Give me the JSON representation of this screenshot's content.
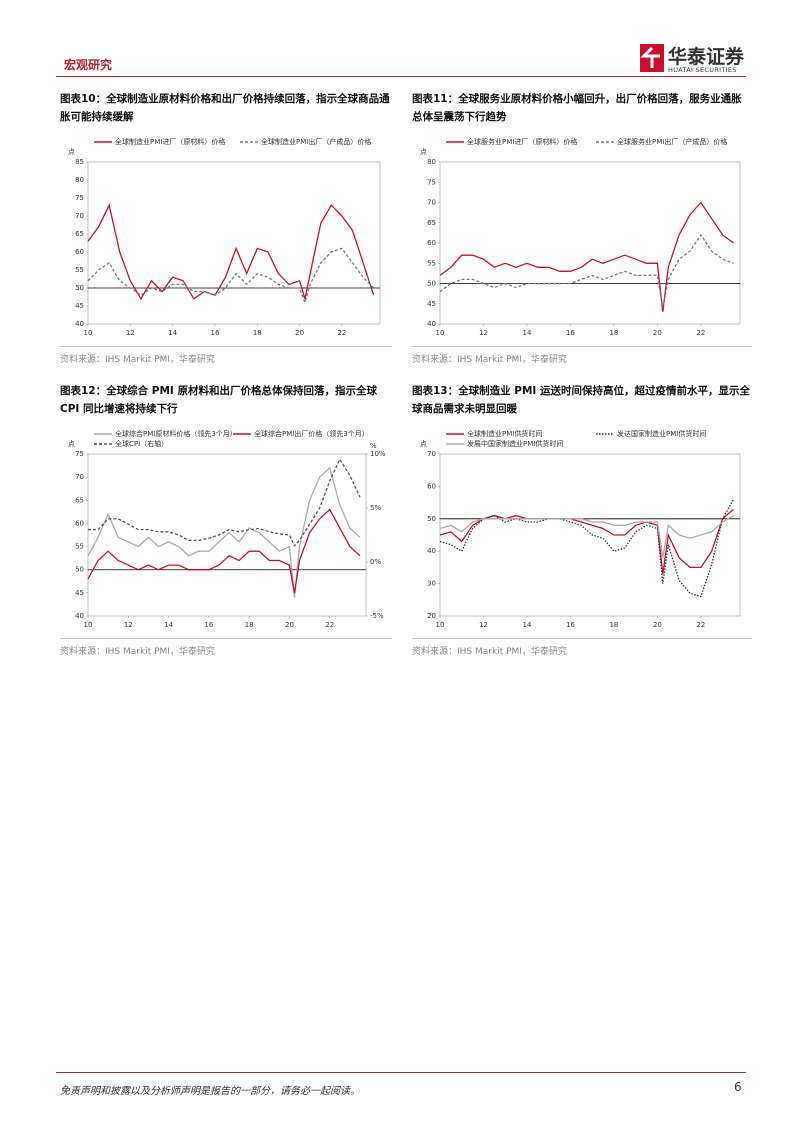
{
  "header": {
    "section": "宏观研究",
    "logo_cn": "华泰证券",
    "logo_en": "HUATAI SECURITIES"
  },
  "chart_data": [
    {
      "type": "line",
      "title": "图表10：全球制造业原材料价格和出厂价格持续回落，指示全球商品通胀可能持续缓解",
      "y_label": "点",
      "x": [
        10,
        10.5,
        11,
        11.5,
        12,
        12.5,
        13,
        13.5,
        14,
        14.5,
        15,
        15.5,
        16,
        16.5,
        17,
        17.5,
        18,
        18.5,
        19,
        19.5,
        20,
        20.25,
        20.5,
        21,
        21.5,
        22,
        22.5,
        23,
        23.5
      ],
      "xlim": [
        10,
        23.8
      ],
      "xticks": [
        10,
        12,
        14,
        16,
        18,
        20,
        22
      ],
      "ylim": [
        40,
        85
      ],
      "yticks": [
        40,
        45,
        50,
        55,
        60,
        65,
        70,
        75,
        80,
        85
      ],
      "hline": 50,
      "series": [
        {
          "name": "全球制造业PMI进厂（原材料）价格",
          "color": "#c8102e",
          "style": "solid",
          "values": [
            63,
            67,
            73,
            60,
            52,
            47,
            52,
            49,
            53,
            52,
            47,
            49,
            48,
            53,
            61,
            54,
            61,
            60,
            54,
            51,
            52,
            47,
            54,
            68,
            73,
            70,
            66,
            57,
            48
          ]
        },
        {
          "name": "全球制造业PMI出厂（产成品）价格",
          "color": "#777777",
          "style": "dashed",
          "values": [
            52,
            55,
            57,
            52,
            50,
            48,
            50,
            49,
            51,
            51,
            49,
            49,
            48,
            50,
            54,
            51,
            54,
            53,
            51,
            50,
            50,
            46,
            51,
            57,
            60,
            61,
            57,
            53,
            50
          ]
        }
      ],
      "source": "资料来源：IHS Markit PMI，华泰研究"
    },
    {
      "type": "line",
      "title": "图表11：全球服务业原材料价格小幅回升，出厂价格回落，服务业通胀总体呈震荡下行趋势",
      "y_label": "点",
      "x": [
        10,
        10.5,
        11,
        11.5,
        12,
        12.5,
        13,
        13.5,
        14,
        14.5,
        15,
        15.5,
        16,
        16.5,
        17,
        17.5,
        18,
        18.5,
        19,
        19.5,
        20,
        20.25,
        20.5,
        21,
        21.5,
        22,
        22.5,
        23,
        23.5
      ],
      "xlim": [
        10,
        23.8
      ],
      "xticks": [
        10,
        12,
        14,
        16,
        18,
        20,
        22
      ],
      "ylim": [
        40,
        80
      ],
      "yticks": [
        40,
        45,
        50,
        55,
        60,
        65,
        70,
        75,
        80
      ],
      "hline": 50,
      "series": [
        {
          "name": "全球服务业PMI进厂（原材料）价格",
          "color": "#c8102e",
          "style": "solid",
          "values": [
            52,
            54,
            57,
            57,
            56,
            54,
            55,
            54,
            55,
            54,
            54,
            53,
            53,
            54,
            56,
            55,
            56,
            57,
            56,
            55,
            55,
            43,
            54,
            62,
            67,
            70,
            66,
            62,
            60
          ]
        },
        {
          "name": "全球服务业PMI出厂（产成品）价格",
          "color": "#777777",
          "style": "dashed",
          "values": [
            48,
            50,
            51,
            51,
            50,
            49,
            50,
            49,
            50,
            50,
            50,
            50,
            50,
            51,
            52,
            51,
            52,
            53,
            52,
            52,
            52,
            44,
            51,
            56,
            58,
            62,
            58,
            56,
            55
          ]
        }
      ],
      "source": "资料来源：IHS Markit PMI，华泰研究"
    },
    {
      "type": "line",
      "title": "图表12：全球综合 PMI 原材料和出厂价格总体保持回落，指示全球 CPI 同比增速将持续下行",
      "y_label": "点",
      "y2_label": "%",
      "x": [
        10,
        10.5,
        11,
        11.5,
        12,
        12.5,
        13,
        13.5,
        14,
        14.5,
        15,
        15.5,
        16,
        16.5,
        17,
        17.5,
        18,
        18.5,
        19,
        19.5,
        20,
        20.25,
        20.5,
        21,
        21.5,
        22,
        22.5,
        23,
        23.5
      ],
      "xlim": [
        10,
        23.8
      ],
      "xticks": [
        10,
        12,
        14,
        16,
        18,
        20,
        22
      ],
      "ylim": [
        40,
        75
      ],
      "yticks": [
        40,
        45,
        50,
        55,
        60,
        65,
        70,
        75
      ],
      "y2lim": [
        -5,
        10
      ],
      "y2ticks": [
        {
          "value": -5,
          "label": "-5%"
        },
        {
          "value": 0,
          "label": "0%"
        },
        {
          "value": 5,
          "label": "5%"
        },
        {
          "value": 10,
          "label": "10%"
        }
      ],
      "hline": 50,
      "series": [
        {
          "name": "全球综合PMI原材料价格（领先3个月）",
          "color": "#aaaaaa",
          "style": "solid",
          "values": [
            53,
            57,
            62,
            57,
            56,
            55,
            57,
            55,
            56,
            55,
            53,
            54,
            54,
            56,
            58,
            56,
            59,
            58,
            56,
            54,
            55,
            44,
            55,
            65,
            70,
            72,
            64,
            59,
            57
          ]
        },
        {
          "name": "全球综合PMI出厂价格（领先3个月）",
          "color": "#c8102e",
          "style": "solid",
          "values": [
            48,
            52,
            54,
            52,
            51,
            50,
            51,
            50,
            51,
            51,
            50,
            50,
            50,
            51,
            53,
            52,
            54,
            54,
            52,
            52,
            51,
            45,
            52,
            58,
            61,
            63,
            59,
            55,
            53
          ]
        },
        {
          "name": "全球CPI（右轴）",
          "color": "#555555",
          "style": "dashed",
          "axis": "y2",
          "values": [
            3,
            3,
            4,
            4,
            3.5,
            3,
            3,
            2.8,
            2.8,
            2.5,
            2,
            2,
            2.2,
            2.5,
            3,
            2.8,
            3,
            3.1,
            2.8,
            2.6,
            2.5,
            1.5,
            2,
            3.5,
            5,
            7.5,
            9.5,
            8,
            6
          ]
        }
      ],
      "source": "资料来源：IHS Markit PMI，华泰研究"
    },
    {
      "type": "line",
      "title": "图表13：全球制造业 PMI 运送时间保持高位，超过疫情前水平，显示全球商品需求未明显回暖",
      "y_label": "点",
      "x": [
        10,
        10.5,
        11,
        11.5,
        12,
        12.5,
        13,
        13.5,
        14,
        14.5,
        15,
        15.5,
        16,
        16.5,
        17,
        17.5,
        18,
        18.5,
        19,
        19.5,
        20,
        20.25,
        20.5,
        21,
        21.5,
        22,
        22.5,
        23,
        23.5
      ],
      "xlim": [
        10,
        23.8
      ],
      "xticks": [
        10,
        12,
        14,
        16,
        18,
        20,
        22
      ],
      "ylim": [
        20,
        70
      ],
      "yticks": [
        20,
        30,
        40,
        50,
        60,
        70
      ],
      "hline": 50,
      "series": [
        {
          "name": "全球制造业PMI供货时间",
          "color": "#c8102e",
          "style": "solid",
          "values": [
            45,
            46,
            43,
            48,
            50,
            51,
            50,
            51,
            50,
            50,
            50,
            50,
            50,
            49,
            48,
            47,
            45,
            45,
            48,
            49,
            48,
            33,
            45,
            38,
            35,
            35,
            40,
            50,
            53
          ]
        },
        {
          "name": "发达国家制造业PMI供货时间",
          "color": "#333333",
          "style": "dotted",
          "values": [
            43,
            42,
            40,
            47,
            50,
            51,
            49,
            50,
            49,
            49,
            50,
            50,
            49,
            48,
            45,
            44,
            40,
            41,
            46,
            48,
            47,
            30,
            42,
            31,
            27,
            26,
            36,
            50,
            56
          ]
        },
        {
          "name": "发展中国家制造业PMI供货时间",
          "color": "#aaaaaa",
          "style": "solid",
          "values": [
            47,
            48,
            46,
            49,
            50,
            50,
            50,
            50,
            50,
            50,
            50,
            50,
            50,
            50,
            49,
            49,
            48,
            48,
            49,
            49,
            49,
            38,
            48,
            45,
            44,
            45,
            46,
            49,
            51
          ]
        }
      ],
      "source": "资料来源：IHS Markit PMI，华泰研究"
    }
  ],
  "footer": {
    "disclaimer": "免责声明和披露以及分析师声明是报告的一部分，请务必一起阅读。",
    "page": 6
  }
}
